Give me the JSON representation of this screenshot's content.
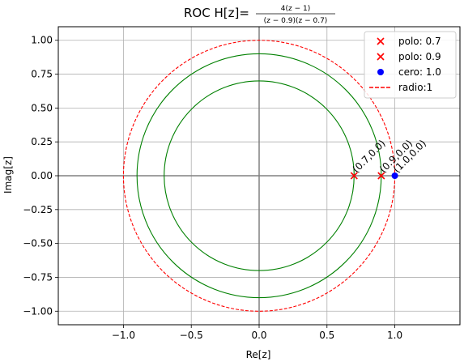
{
  "chart_data": {
    "type": "scatter",
    "title": {
      "prefix": "ROC H[z]=",
      "numerator": "4(z − 1)",
      "denominator": "(z − 0.9)(z − 0.7)"
    },
    "xlabel": "Re[z]",
    "ylabel": "Imag[z]",
    "xlim": [
      -1.48,
      1.48
    ],
    "ylim": [
      -1.1,
      1.1
    ],
    "x_ticks": [
      {
        "value": -1.0,
        "label": "−1.0"
      },
      {
        "value": -0.5,
        "label": "−0.5"
      },
      {
        "value": 0.0,
        "label": "0.0"
      },
      {
        "value": 0.5,
        "label": "0.5"
      },
      {
        "value": 1.0,
        "label": "1.0"
      }
    ],
    "y_ticks": [
      {
        "value": -1.0,
        "label": "−1.00"
      },
      {
        "value": -0.75,
        "label": "−0.75"
      },
      {
        "value": -0.5,
        "label": "−0.50"
      },
      {
        "value": -0.25,
        "label": "−0.25"
      },
      {
        "value": 0.0,
        "label": "0.00"
      },
      {
        "value": 0.25,
        "label": "0.25"
      },
      {
        "value": 0.5,
        "label": "0.50"
      },
      {
        "value": 0.75,
        "label": "0.75"
      },
      {
        "value": 1.0,
        "label": "1.00"
      }
    ],
    "grid": true,
    "legend_position": "top-right",
    "circles": [
      {
        "radius": 1.0,
        "style": "dashed",
        "color": "#ff0000"
      },
      {
        "radius": 0.9,
        "style": "solid",
        "color": "#008000"
      },
      {
        "radius": 0.7,
        "style": "solid",
        "color": "#008000"
      }
    ],
    "points": [
      {
        "x": 0.7,
        "y": 0.0,
        "marker": "x",
        "color": "#ff0000",
        "label": "(0.7,0.0)"
      },
      {
        "x": 0.9,
        "y": 0.0,
        "marker": "x",
        "color": "#ff0000",
        "label": "(0.9,0.0)"
      },
      {
        "x": 1.0,
        "y": 0.0,
        "marker": "o",
        "color": "#0000ff",
        "label": "(1.0,0.0)"
      }
    ],
    "legend": [
      {
        "marker": "x",
        "color": "#ff0000",
        "label": "polo: 0.7"
      },
      {
        "marker": "x",
        "color": "#ff0000",
        "label": "polo: 0.9"
      },
      {
        "marker": "o",
        "color": "#0000ff",
        "label": "cero: 1.0"
      },
      {
        "marker": "dash",
        "color": "#ff0000",
        "label": "radio:1"
      }
    ]
  }
}
